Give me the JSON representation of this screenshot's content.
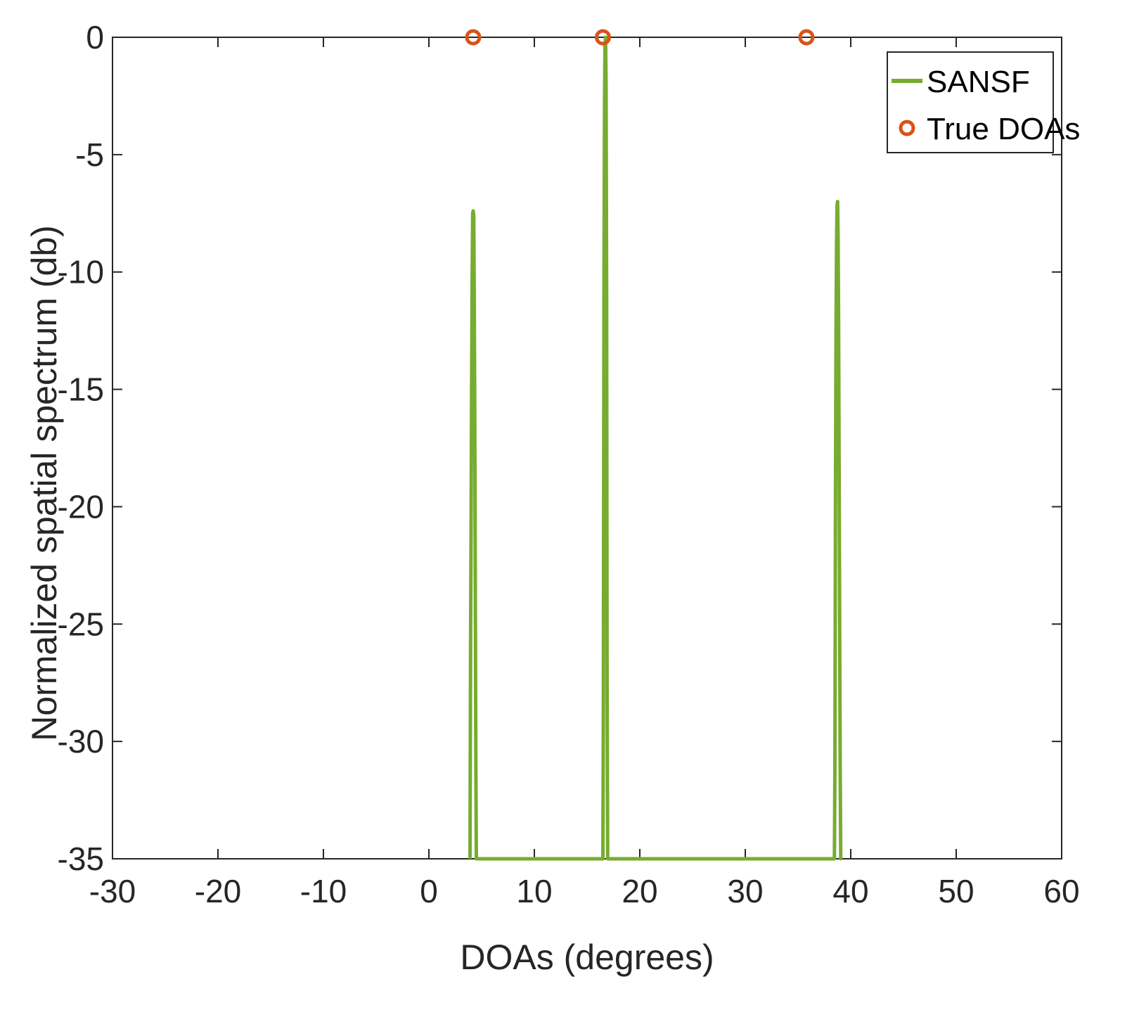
{
  "chart_data": {
    "type": "line",
    "title": "",
    "xlabel": "DOAs (degrees)",
    "ylabel": "Normalized spatial spectrum (db)",
    "xlim": [
      -30,
      60
    ],
    "ylim": [
      -35,
      0
    ],
    "xticks": [
      -30,
      -20,
      -10,
      0,
      10,
      20,
      30,
      40,
      50,
      60
    ],
    "yticks": [
      0,
      -5,
      -10,
      -15,
      -20,
      -25,
      -30,
      -35
    ],
    "grid": false,
    "legend": "top-right",
    "series": [
      {
        "name": "SANSF",
        "kind": "line",
        "color": "#77AC30",
        "x": [
          3.9,
          3.95,
          4.0,
          4.05,
          4.1,
          4.15,
          4.2,
          4.25,
          4.3,
          4.35,
          4.4,
          4.45,
          4.5,
          4.55,
          4.6,
          16.5,
          16.55,
          16.6,
          16.65,
          16.7,
          16.75,
          16.8,
          16.85,
          16.9,
          16.95,
          17.0,
          38.4,
          38.45,
          38.5,
          38.55,
          38.6,
          38.65,
          38.7,
          38.75,
          38.8,
          38.85,
          38.9,
          38.95,
          39.0,
          39.05,
          39.1
        ],
        "y": [
          -35,
          -26,
          -21,
          -15,
          -10.5,
          -7.5,
          -7.4,
          -7.6,
          -11,
          -16.5,
          -23,
          -31,
          -35,
          -35,
          -35,
          -35,
          -28,
          -11,
          -3,
          -0.3,
          0,
          -2,
          -11,
          -28,
          -35,
          -35,
          -35,
          -35,
          -31,
          -20,
          -13,
          -9,
          -7.2,
          -7.0,
          -8.5,
          -12,
          -18.5,
          -25.5,
          -31,
          -35,
          -35
        ]
      },
      {
        "name": "True DOAs",
        "kind": "marker",
        "color": "#D95319",
        "x": [
          4.2,
          16.5,
          35.8
        ],
        "y": [
          0,
          0,
          0
        ]
      }
    ]
  }
}
